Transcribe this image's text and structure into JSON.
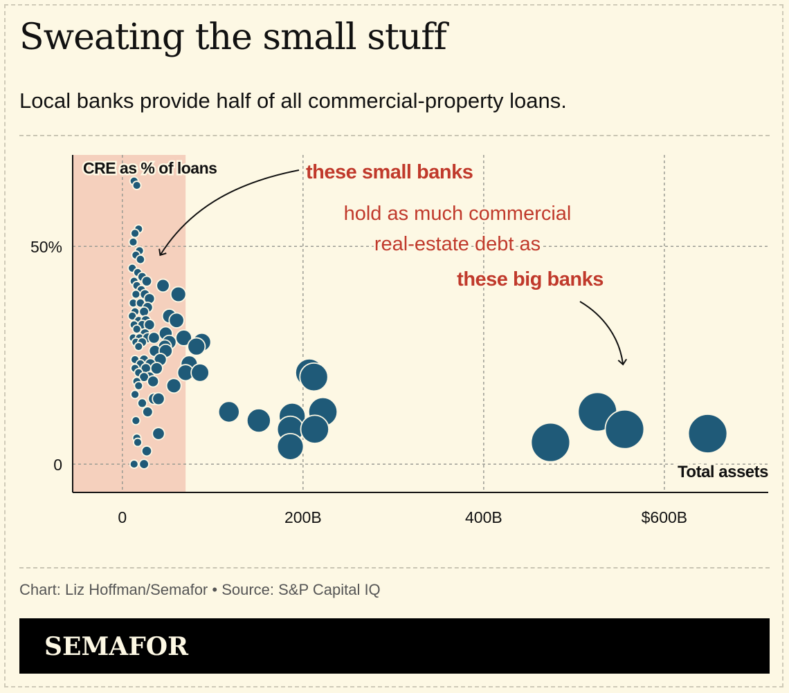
{
  "header": {
    "title": "Sweating the small stuff",
    "subtitle": "Local banks provide half of all commercial-property loans."
  },
  "annotations": {
    "small_banks": "these small banks",
    "line1": "hold as much commercial",
    "line2": "real-estate debt as",
    "big_banks": "these big banks"
  },
  "footer": {
    "credit": "Chart: Liz Hoffman/Semafor • Source: S&P Capital IQ",
    "brand": "SEMAFOR"
  },
  "colors": {
    "dot": "#1f5a78",
    "highlight_band": "#f5d0bd",
    "accent_red": "#c0392b"
  },
  "chart_data": {
    "type": "scatter",
    "xlabel": "Total assets",
    "ylabel": "CRE as % of loans",
    "x_ticks": [
      {
        "value": 0,
        "label": "0"
      },
      {
        "value": 200,
        "label": "200B"
      },
      {
        "value": 400,
        "label": "400B"
      },
      {
        "value": 600,
        "label": "$600B"
      }
    ],
    "y_ticks": [
      {
        "value": 0,
        "label": "0"
      },
      {
        "value": 50,
        "label": "50%"
      }
    ],
    "xlim": [
      -55,
      715
    ],
    "ylim": [
      -6.5,
      71
    ],
    "highlight_band": [
      -55,
      70
    ],
    "grid": true,
    "points": [
      {
        "x": 13,
        "y": 65
      },
      {
        "x": 16,
        "y": 64
      },
      {
        "x": 18,
        "y": 54
      },
      {
        "x": 14,
        "y": 53
      },
      {
        "x": 12,
        "y": 51
      },
      {
        "x": 19,
        "y": 49
      },
      {
        "x": 15,
        "y": 48
      },
      {
        "x": 20,
        "y": 47
      },
      {
        "x": 11,
        "y": 45
      },
      {
        "x": 17,
        "y": 44
      },
      {
        "x": 22,
        "y": 43
      },
      {
        "x": 13,
        "y": 42
      },
      {
        "x": 27,
        "y": 42
      },
      {
        "x": 16,
        "y": 41
      },
      {
        "x": 21,
        "y": 40
      },
      {
        "x": 45,
        "y": 41
      },
      {
        "x": 15,
        "y": 39
      },
      {
        "x": 25,
        "y": 39
      },
      {
        "x": 62,
        "y": 39
      },
      {
        "x": 30,
        "y": 38
      },
      {
        "x": 12,
        "y": 37
      },
      {
        "x": 20,
        "y": 37
      },
      {
        "x": 28,
        "y": 36
      },
      {
        "x": 14,
        "y": 35
      },
      {
        "x": 24,
        "y": 35
      },
      {
        "x": 11,
        "y": 34
      },
      {
        "x": 18,
        "y": 33
      },
      {
        "x": 26,
        "y": 33
      },
      {
        "x": 52,
        "y": 34
      },
      {
        "x": 60,
        "y": 33
      },
      {
        "x": 13,
        "y": 32
      },
      {
        "x": 22,
        "y": 32
      },
      {
        "x": 30,
        "y": 32
      },
      {
        "x": 16,
        "y": 31
      },
      {
        "x": 25,
        "y": 30
      },
      {
        "x": 48,
        "y": 30
      },
      {
        "x": 12,
        "y": 29
      },
      {
        "x": 19,
        "y": 29
      },
      {
        "x": 28,
        "y": 29
      },
      {
        "x": 35,
        "y": 29
      },
      {
        "x": 68,
        "y": 29
      },
      {
        "x": 15,
        "y": 28
      },
      {
        "x": 22,
        "y": 28
      },
      {
        "x": 52,
        "y": 28
      },
      {
        "x": 88,
        "y": 28
      },
      {
        "x": 18,
        "y": 27
      },
      {
        "x": 82,
        "y": 27
      },
      {
        "x": 47,
        "y": 27
      },
      {
        "x": 36,
        "y": 26
      },
      {
        "x": 48,
        "y": 26
      },
      {
        "x": 14,
        "y": 24
      },
      {
        "x": 24,
        "y": 24
      },
      {
        "x": 42,
        "y": 24
      },
      {
        "x": 20,
        "y": 23
      },
      {
        "x": 31,
        "y": 23
      },
      {
        "x": 74,
        "y": 23
      },
      {
        "x": 14,
        "y": 22
      },
      {
        "x": 26,
        "y": 22
      },
      {
        "x": 38,
        "y": 22
      },
      {
        "x": 18,
        "y": 21
      },
      {
        "x": 70,
        "y": 21
      },
      {
        "x": 86,
        "y": 21
      },
      {
        "x": 30,
        "y": 20
      },
      {
        "x": 24,
        "y": 20
      },
      {
        "x": 16,
        "y": 19
      },
      {
        "x": 34,
        "y": 19
      },
      {
        "x": 57,
        "y": 18
      },
      {
        "x": 18,
        "y": 18
      },
      {
        "x": 14,
        "y": 16
      },
      {
        "x": 35,
        "y": 15
      },
      {
        "x": 40,
        "y": 15
      },
      {
        "x": 22,
        "y": 14
      },
      {
        "x": 28,
        "y": 12
      },
      {
        "x": 15,
        "y": 10
      },
      {
        "x": 40,
        "y": 7
      },
      {
        "x": 16,
        "y": 6
      },
      {
        "x": 17,
        "y": 5
      },
      {
        "x": 27,
        "y": 3
      },
      {
        "x": 13,
        "y": 0
      },
      {
        "x": 24,
        "y": 0
      },
      {
        "x": 118,
        "y": 12
      },
      {
        "x": 151,
        "y": 10
      },
      {
        "x": 188,
        "y": 11
      },
      {
        "x": 186,
        "y": 8
      },
      {
        "x": 186,
        "y": 4
      },
      {
        "x": 207,
        "y": 21
      },
      {
        "x": 212,
        "y": 20
      },
      {
        "x": 222,
        "y": 12
      },
      {
        "x": 213,
        "y": 8
      },
      {
        "x": 474,
        "y": 5
      },
      {
        "x": 526,
        "y": 12
      },
      {
        "x": 556,
        "y": 8
      },
      {
        "x": 648,
        "y": 7
      }
    ]
  }
}
